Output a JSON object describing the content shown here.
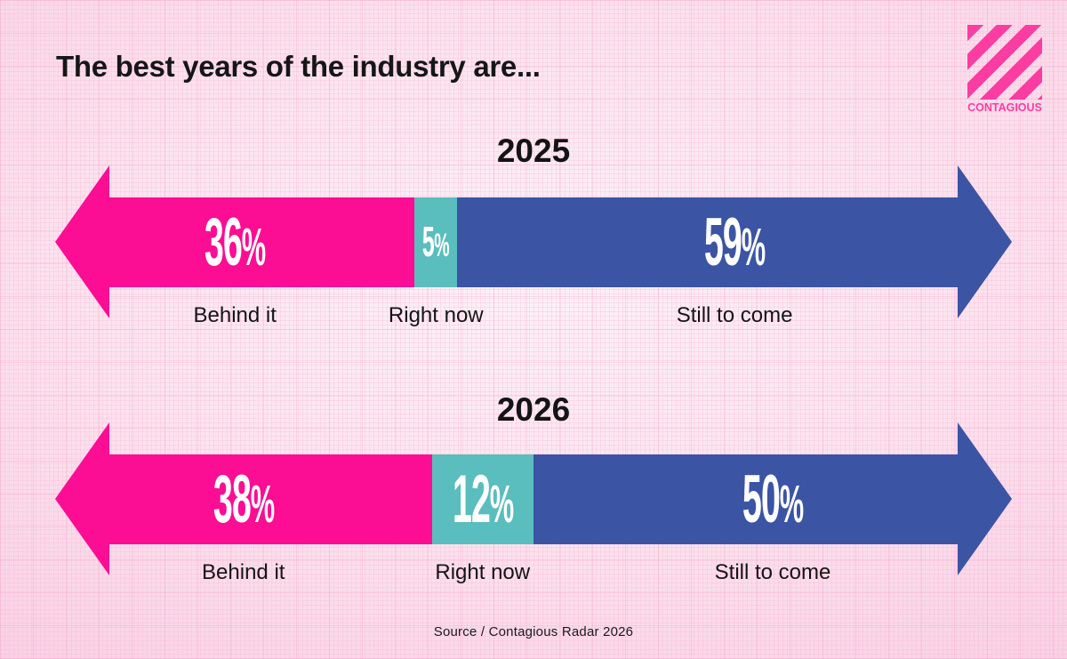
{
  "page": {
    "title": "The best years of the industry are...",
    "source": "Source / Contagious Radar 2026"
  },
  "logo": {
    "brand": "CONTAGIOUS",
    "color": "#fb3da2"
  },
  "colors": {
    "behind_it": "#fb0d94",
    "right_now": "#5abdbe",
    "still_to_come": "#3b54a4",
    "background_pink": "#fce4ef",
    "text": "#141414",
    "value_text": "#ffffff"
  },
  "rows": [
    {
      "year": "2025",
      "segments": [
        {
          "label": "Behind it",
          "value": 36,
          "display": "36",
          "unit": "%"
        },
        {
          "label": "Right now",
          "value": 5,
          "display": "5",
          "unit": "%"
        },
        {
          "label": "Still to come",
          "value": 59,
          "display": "59",
          "unit": "%"
        }
      ]
    },
    {
      "year": "2026",
      "segments": [
        {
          "label": "Behind it",
          "value": 38,
          "display": "38",
          "unit": "%"
        },
        {
          "label": "Right now",
          "value": 12,
          "display": "12",
          "unit": "%"
        },
        {
          "label": "Still to come",
          "value": 50,
          "display": "50",
          "unit": "%"
        }
      ]
    }
  ],
  "chart_data": {
    "type": "bar",
    "subtype": "horizontal-stacked-arrow",
    "title": "The best years of the industry are...",
    "categories": [
      "2025",
      "2026"
    ],
    "series": [
      {
        "name": "Behind it",
        "color": "#fb0d94",
        "values": [
          36,
          38
        ]
      },
      {
        "name": "Right now",
        "color": "#5abdbe",
        "values": [
          5,
          12
        ]
      },
      {
        "name": "Still to come",
        "color": "#3b54a4",
        "values": [
          59,
          50
        ]
      }
    ],
    "unit": "%",
    "xlim": [
      0,
      100
    ],
    "legend": "labels-below-segments",
    "source": "Source / Contagious Radar 2026"
  }
}
